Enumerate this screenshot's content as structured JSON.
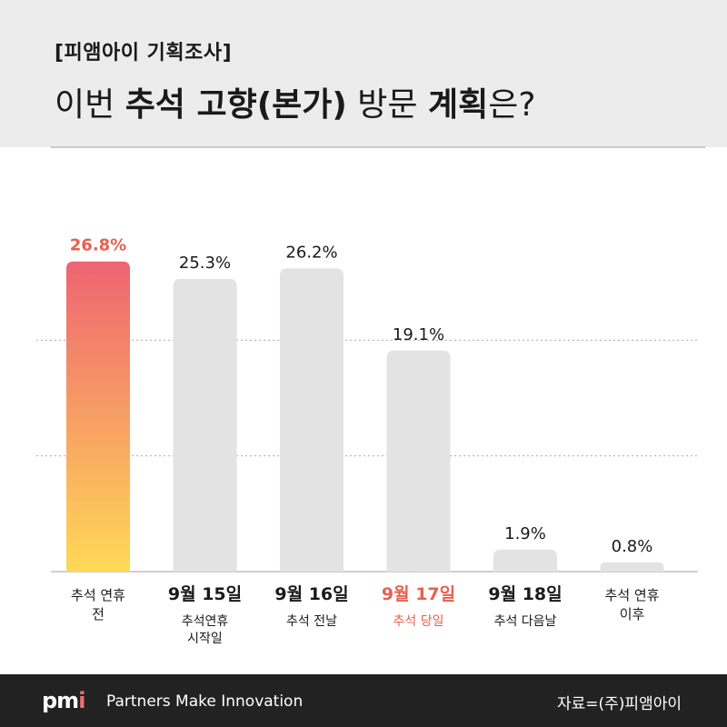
{
  "header": {
    "subtitle": "[피앰아이 기획조사]",
    "title_parts": [
      {
        "text": "이번 ",
        "bold": false
      },
      {
        "text": "추석 고향(본가)",
        "bold": true
      },
      {
        "text": " 방문 ",
        "bold": false
      },
      {
        "text": "계획",
        "bold": true
      },
      {
        "text": "은?",
        "bold": false
      }
    ]
  },
  "chart_data": {
    "type": "bar",
    "title": "이번 추석 고향(본가) 방문 계획은?",
    "categories": [
      {
        "main": "추석 연휴",
        "sub": "전",
        "highlight": false,
        "main_bold": false
      },
      {
        "main": "9월 15일",
        "sub": "추석연휴\n시작일",
        "highlight": false,
        "main_bold": true
      },
      {
        "main": "9월 16일",
        "sub": "추석 전날",
        "highlight": false,
        "main_bold": true
      },
      {
        "main": "9월 17일",
        "sub": "추석 당일",
        "highlight": true,
        "main_bold": true
      },
      {
        "main": "9월 18일",
        "sub": "추석 다음날",
        "highlight": false,
        "main_bold": true
      },
      {
        "main": "추석 연휴",
        "sub": "이후",
        "highlight": false,
        "main_bold": false
      }
    ],
    "values": [
      26.8,
      25.3,
      26.2,
      19.1,
      1.9,
      0.8
    ],
    "value_labels": [
      "26.8%",
      "25.3%",
      "26.2%",
      "19.1%",
      "1.9%",
      "0.8%"
    ],
    "ylim": [
      0,
      30
    ],
    "unit": "%",
    "grid": true,
    "highlight_index": 0,
    "colors": {
      "bar": "#e3e3e3",
      "highlight_top": "#ee6472",
      "highlight_bottom": "#ffd956",
      "highlight_label": "#e8604f",
      "text": "#1a1a1a",
      "grid": "#aaaaaa"
    }
  },
  "footer": {
    "logo_main": "pm",
    "logo_accent": "i",
    "tagline": "Partners Make Innovation",
    "source": "자료=(주)피앰아이"
  }
}
